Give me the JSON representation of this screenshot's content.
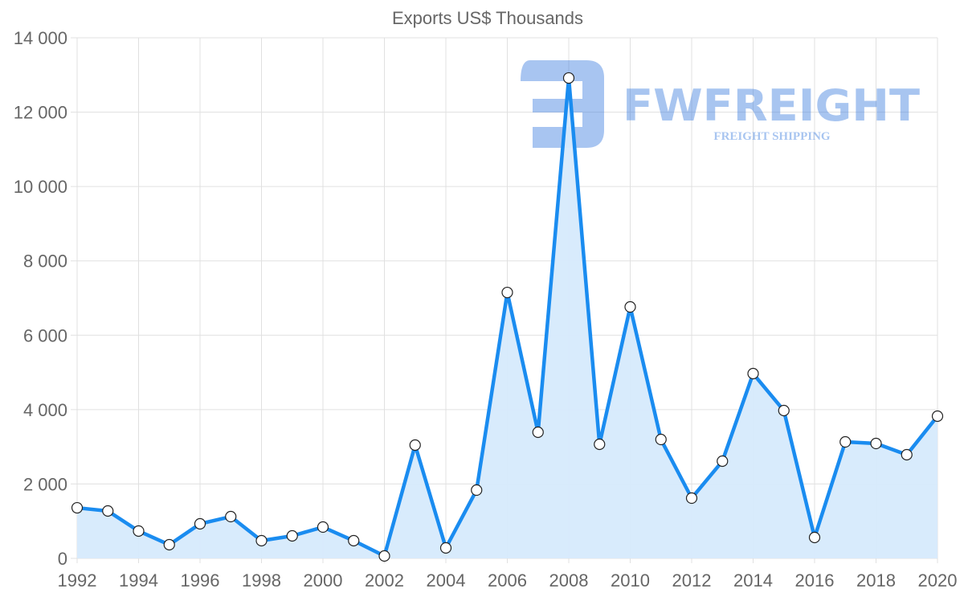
{
  "chart_data": {
    "type": "line",
    "title": "Exports US$ Thousands",
    "xlabel": "",
    "ylabel": "",
    "x": [
      1992,
      1993,
      1994,
      1995,
      1996,
      1997,
      1998,
      1999,
      2000,
      2001,
      2002,
      2003,
      2004,
      2005,
      2006,
      2007,
      2008,
      2009,
      2010,
      2011,
      2012,
      2013,
      2014,
      2015,
      2016,
      2017,
      2018,
      2019,
      2020
    ],
    "series": [
      {
        "name": "Exports US$ Thousands",
        "values": [
          1360,
          1275,
          735,
          367,
          929,
          1123,
          475,
          605,
          842,
          475,
          65,
          3046,
          281,
          1836,
          7150,
          3392,
          12918,
          3068,
          6762,
          3197,
          1620,
          2614,
          4969,
          3975,
          562,
          3132,
          3089,
          2787,
          3824
        ]
      }
    ],
    "xlim": [
      1992,
      2020
    ],
    "ylim": [
      0,
      14000
    ],
    "xticks": [
      "1992",
      "1994",
      "1996",
      "1998",
      "2000",
      "2002",
      "2004",
      "2006",
      "2008",
      "2010",
      "2012",
      "2014",
      "2016",
      "2018",
      "2020"
    ],
    "yticks": [
      "0",
      "2 000",
      "4 000",
      "6 000",
      "8 000",
      "10 000",
      "12 000",
      "14 000"
    ],
    "grid": true,
    "legend": "none",
    "colors": {
      "line": "#1a8cf0",
      "fill": "#d6eafc",
      "grid": "#e0e0e0"
    }
  },
  "watermark": {
    "brand": "FWFREIGHT",
    "tagline": "FREIGHT SHIPPING"
  }
}
